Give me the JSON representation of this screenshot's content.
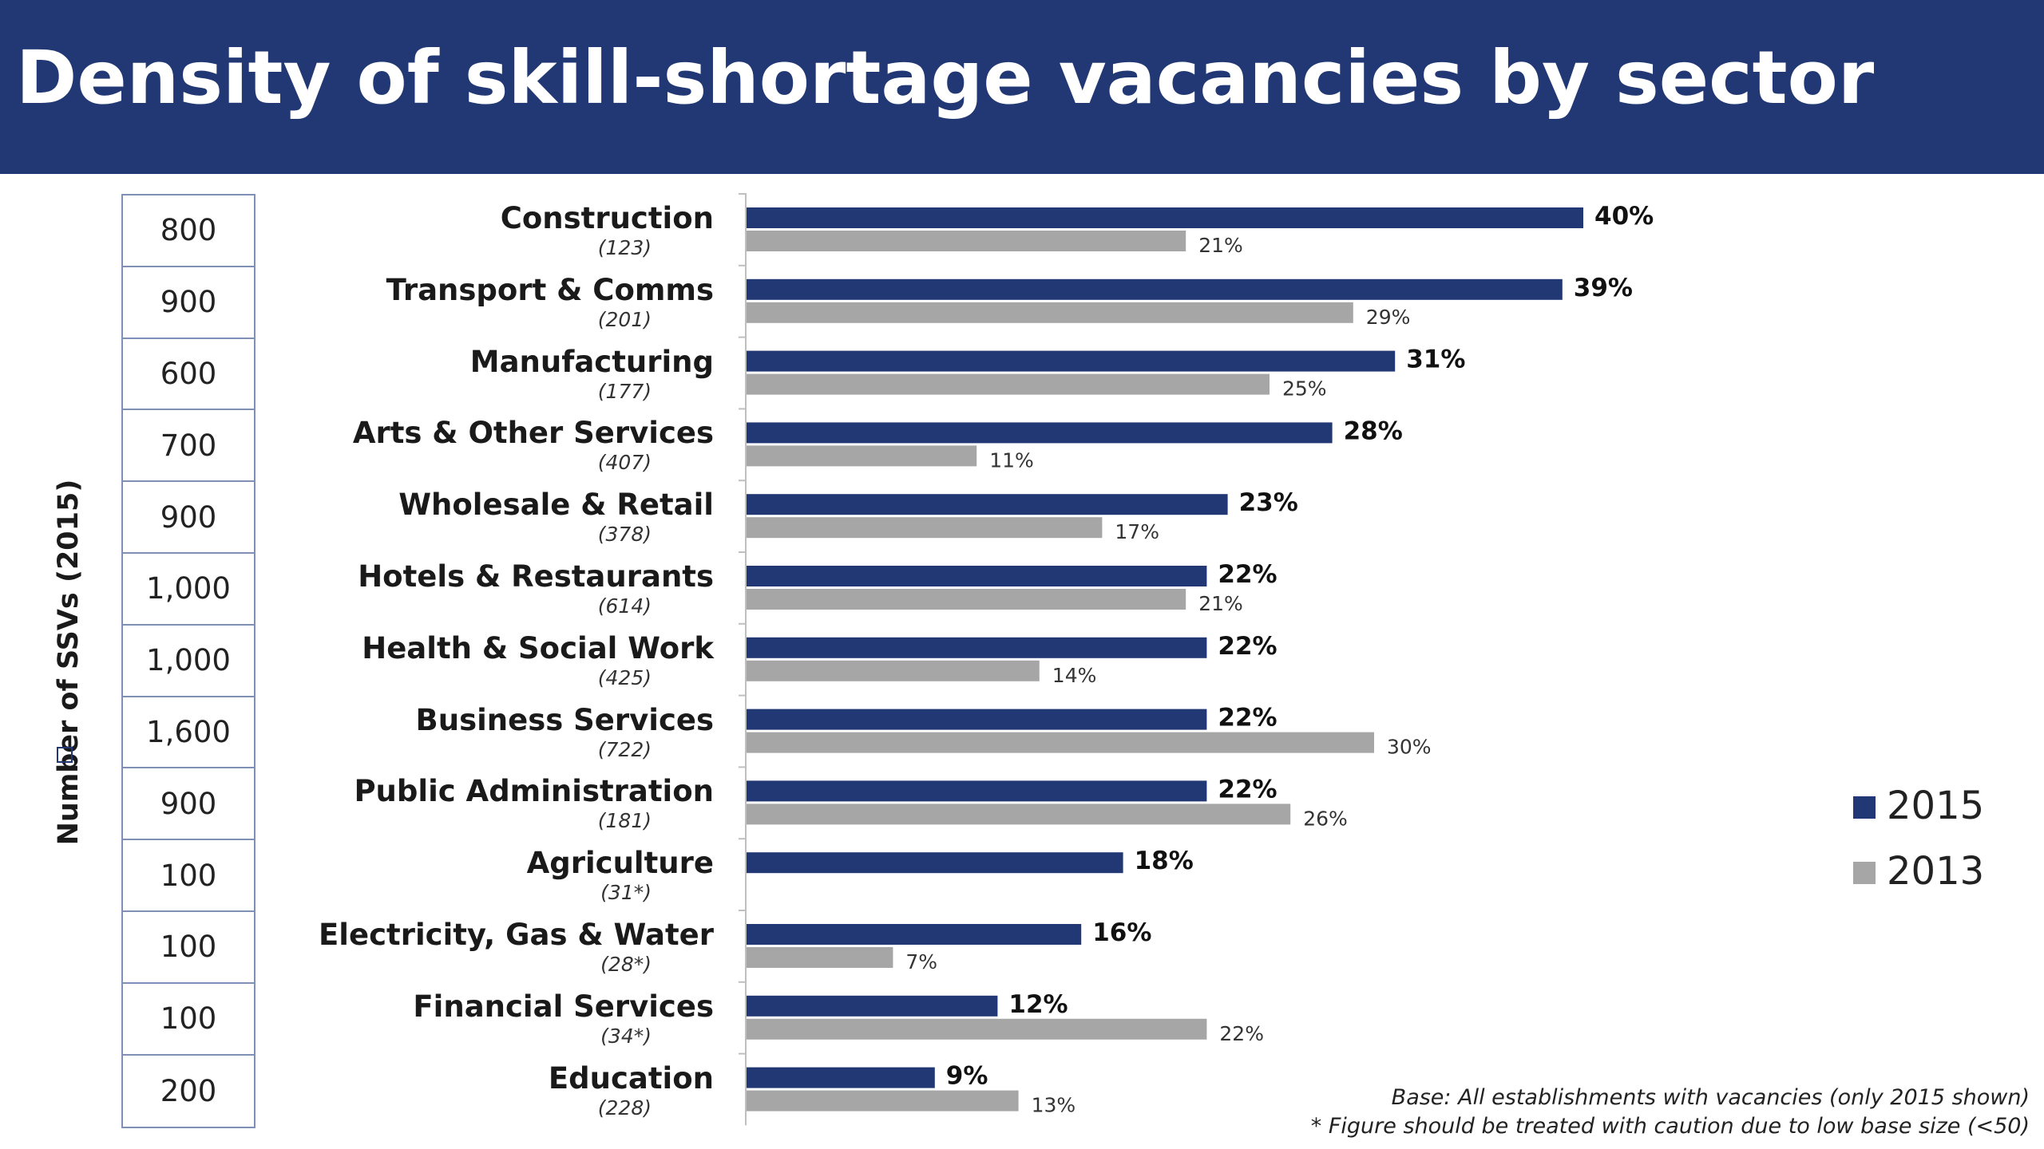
{
  "title": "Density of skill-shortage vacancies by sector",
  "y_side_label": "Number of SSVs (2015)",
  "footnotes": [
    "Base: All establishments with vacancies (only 2015 shown)",
    "* Figure should be treated with caution due to low base size (<50)"
  ],
  "colors": {
    "header": "#213874",
    "s2015": "#213874",
    "s2013": "#a6a6a6"
  },
  "chart_data": {
    "type": "bar",
    "orientation": "horizontal",
    "categories": [
      "Construction",
      "Transport & Comms",
      "Manufacturing",
      "Arts & Other Services",
      "Wholesale & Retail",
      "Hotels & Restaurants",
      "Health & Social Work",
      "Business Services",
      "Public Administration",
      "Agriculture",
      "Electricity, Gas & Water",
      "Financial Services",
      "Education"
    ],
    "bases": [
      "(123)",
      "(201)",
      "(177)",
      "(407)",
      "(378)",
      "(614)",
      "(425)",
      "(722)",
      "(181)",
      "(31*)",
      "(28*)",
      "(34*)",
      "(228)"
    ],
    "ssv_counts": [
      "800",
      "900",
      "600",
      "700",
      "900",
      "1,000",
      "1,000",
      "1,600",
      "900",
      "100",
      "100",
      "100",
      "200"
    ],
    "series": [
      {
        "name": "2015",
        "values": [
          40,
          39,
          31,
          28,
          23,
          22,
          22,
          22,
          22,
          18,
          16,
          12,
          9
        ],
        "labels": [
          "40%",
          "39%",
          "31%",
          "28%",
          "23%",
          "22%",
          "22%",
          "22%",
          "22%",
          "18%",
          "16%",
          "12%",
          "9%"
        ]
      },
      {
        "name": "2013",
        "values": [
          21,
          29,
          25,
          11,
          17,
          21,
          14,
          30,
          26,
          null,
          7,
          22,
          13
        ],
        "labels": [
          "21%",
          "29%",
          "25%",
          "11%",
          "17%",
          "21%",
          "14%",
          "30%",
          "26%",
          "",
          "7%",
          "22%",
          "13%"
        ]
      }
    ],
    "legend_position": "right",
    "grid": false
  }
}
